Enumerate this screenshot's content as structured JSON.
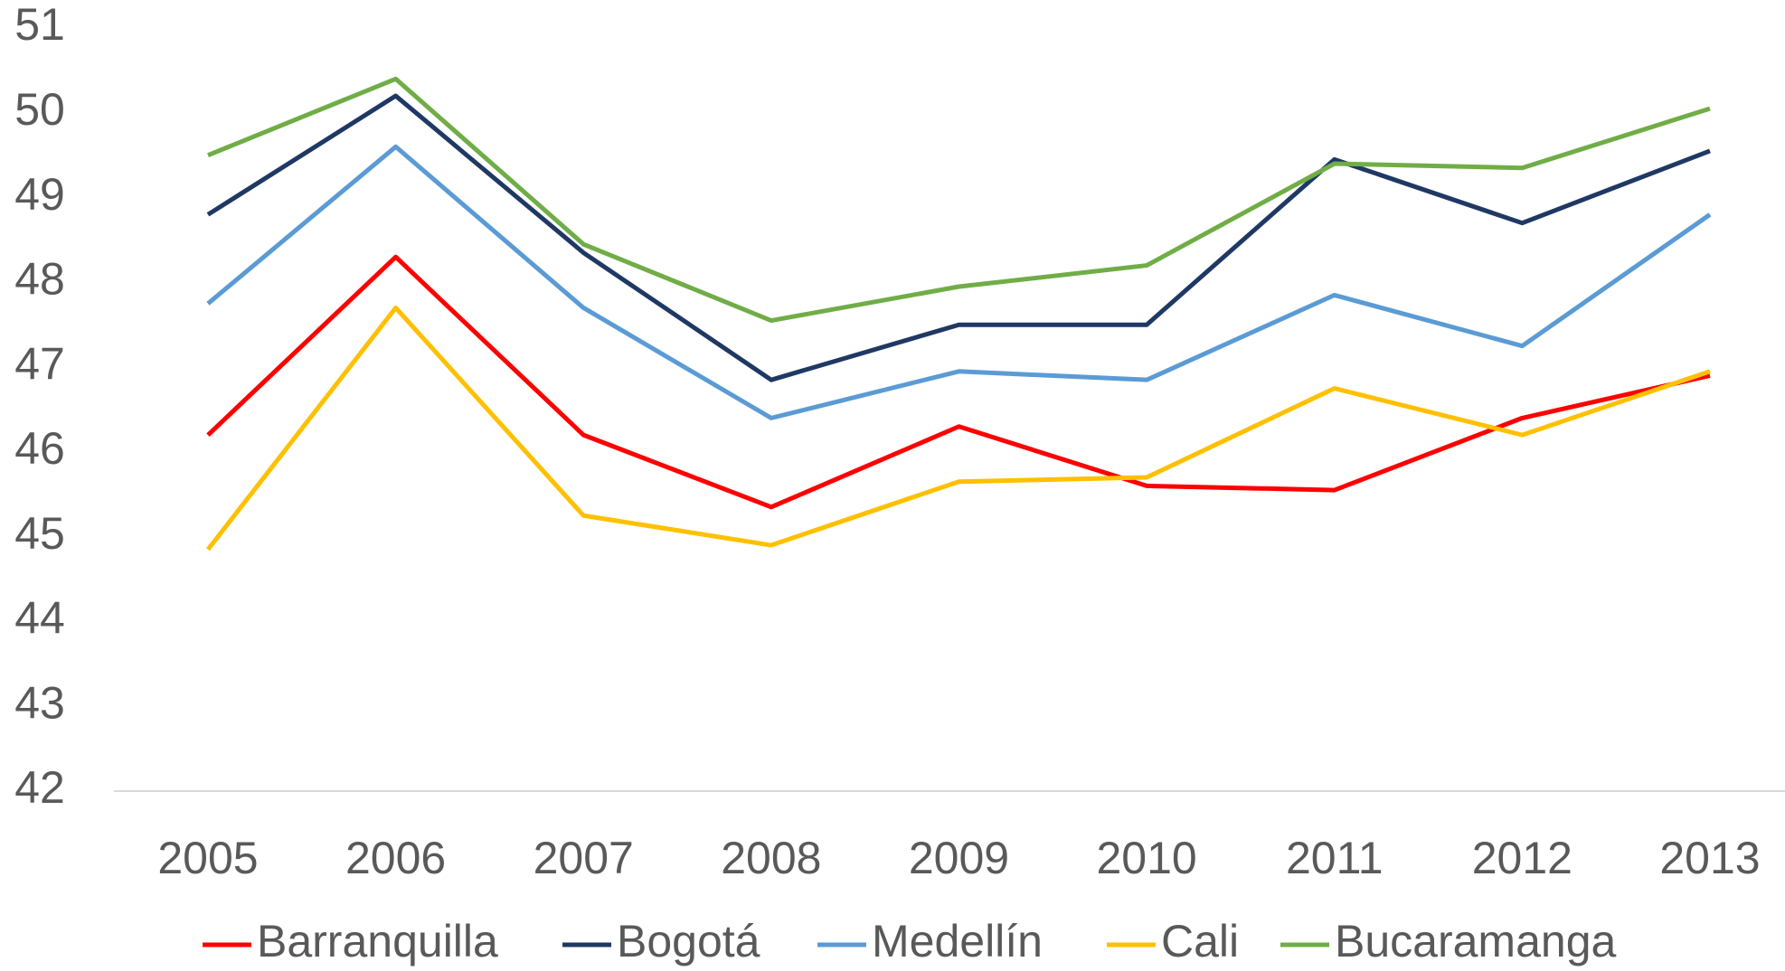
{
  "chart_data": {
    "type": "line",
    "categories": [
      "2005",
      "2006",
      "2007",
      "2008",
      "2009",
      "2010",
      "2011",
      "2012",
      "2013"
    ],
    "series": [
      {
        "name": "Barranquilla",
        "color": "#ff0000",
        "values": [
          46.2,
          48.3,
          46.2,
          45.35,
          46.3,
          45.6,
          45.55,
          46.4,
          46.9
        ]
      },
      {
        "name": "Bogotá",
        "color": "#1f3864",
        "values": [
          48.8,
          50.2,
          48.35,
          46.85,
          47.5,
          47.5,
          49.45,
          48.7,
          49.55
        ]
      },
      {
        "name": "Medellín",
        "color": "#5b9bd5",
        "values": [
          47.75,
          49.6,
          47.7,
          46.4,
          46.95,
          46.85,
          47.85,
          47.25,
          48.8
        ]
      },
      {
        "name": "Cali",
        "color": "#ffc000",
        "values": [
          44.85,
          47.7,
          45.25,
          44.9,
          45.65,
          45.7,
          46.75,
          46.2,
          46.95
        ]
      },
      {
        "name": "Bucaramanga",
        "color": "#70ad47",
        "values": [
          49.5,
          50.4,
          48.45,
          47.55,
          47.95,
          48.2,
          49.4,
          49.35,
          50.05
        ]
      }
    ],
    "ylim": [
      42,
      51
    ],
    "yticks": [
      42,
      43,
      44,
      45,
      46,
      47,
      48,
      49,
      50,
      51
    ],
    "grid": false,
    "legend": "bottom"
  }
}
